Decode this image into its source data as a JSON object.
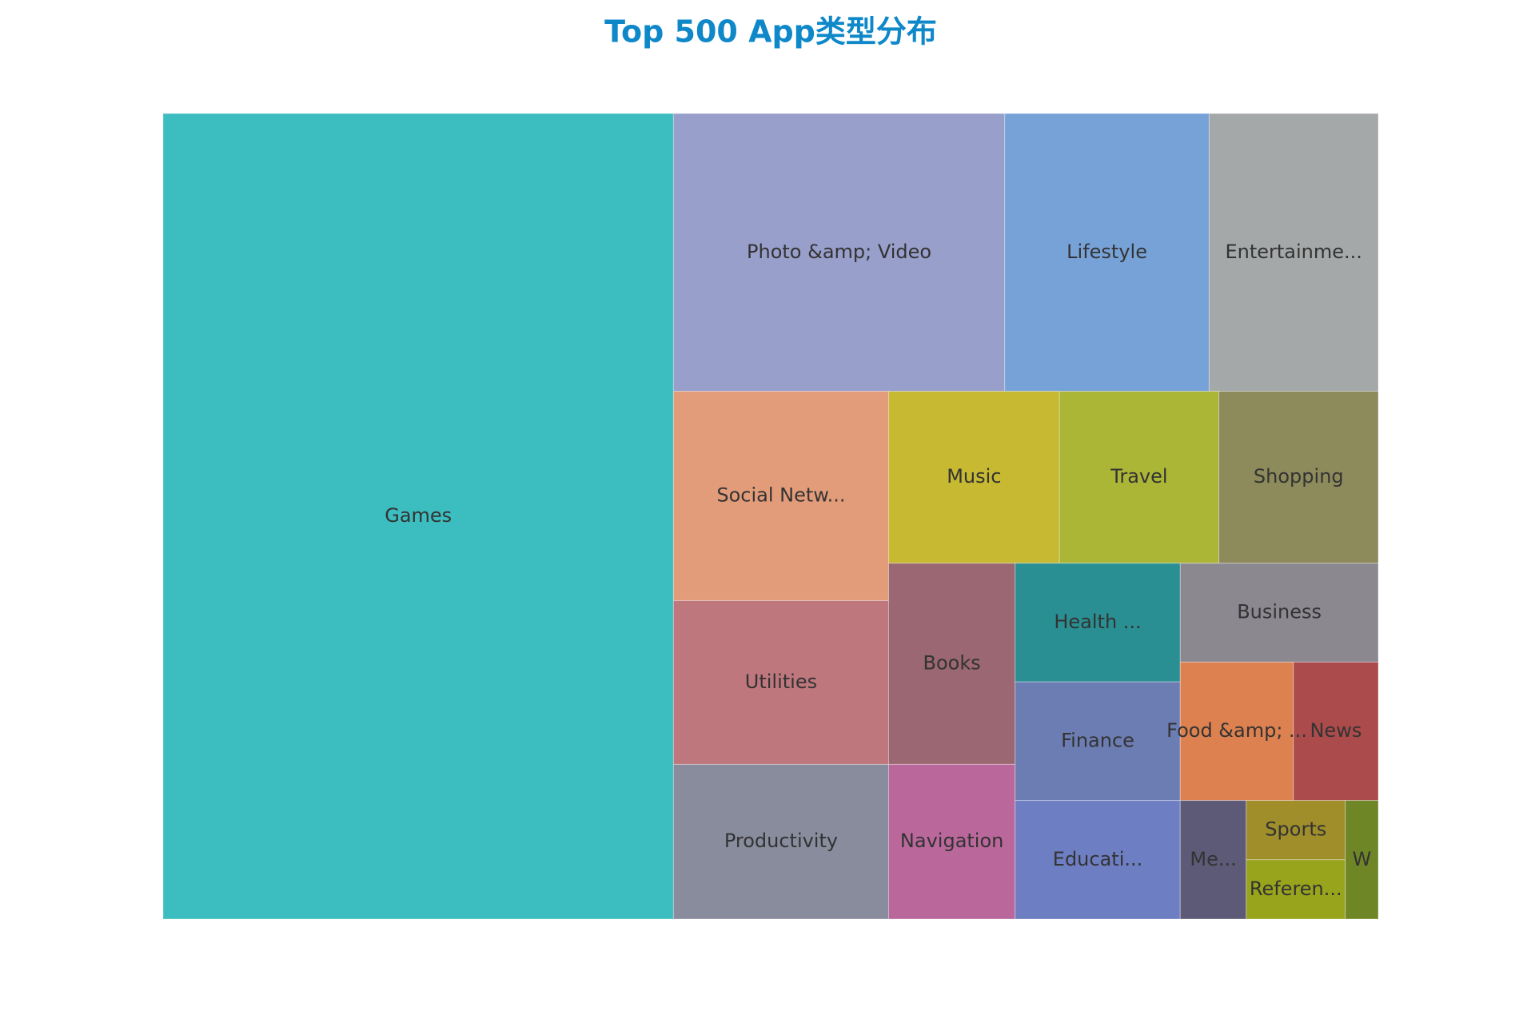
{
  "chart_data": {
    "type": "treemap",
    "title": "Top 500 App类型分布",
    "categories": [
      "Games",
      "Photo &amp; Video",
      "Lifestyle",
      "Entertainme...",
      "Social Netw...",
      "Utilities",
      "Productivity",
      "Music",
      "Travel",
      "Shopping",
      "Books",
      "Navigation",
      "Health ...",
      "Finance",
      "Educati...",
      "Business",
      "Food &amp; ...",
      "News",
      "Me...",
      "Sports",
      "Referen...",
      "W"
    ],
    "values": [
      210,
      47,
      29,
      24,
      23,
      18,
      17,
      15,
      14,
      14,
      13,
      10,
      10,
      10,
      10,
      10,
      8,
      6,
      4,
      3,
      3,
      2
    ],
    "colors": [
      "#3cbdbf",
      "#989fcb",
      "#77a2d8",
      "#a5a8a8",
      "#e39c7a",
      "#be777d",
      "#888c9c",
      "#c7b932",
      "#abb637",
      "#8d8b5b",
      "#9a6772",
      "#ba689c",
      "#2a8f92",
      "#6c7db3",
      "#6d7ec2",
      "#8b8890",
      "#dd8150",
      "#ac4b4b",
      "#5d5a78",
      "#a08e2a",
      "#98a41c",
      "#6f8626"
    ]
  }
}
